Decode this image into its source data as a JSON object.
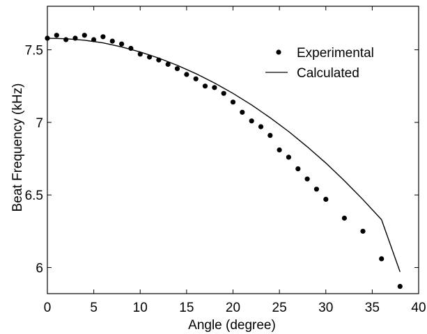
{
  "chart_data": {
    "type": "scatter",
    "xlabel": "Angle (degree)",
    "ylabel": "Beat Frequency (kHz)",
    "xlim": [
      0,
      40
    ],
    "ylim": [
      5.82,
      7.8
    ],
    "xticks": [
      0,
      5,
      10,
      15,
      20,
      25,
      30,
      35,
      40
    ],
    "yticks": [
      6,
      6.5,
      7,
      7.5
    ],
    "xtick_labels": [
      "0",
      "5",
      "10",
      "15",
      "20",
      "25",
      "30",
      "35",
      "40"
    ],
    "ytick_labels": [
      "6",
      "6.5",
      "7",
      "7.5"
    ],
    "grid": false,
    "legend_position": "top-right",
    "series": [
      {
        "name": "Experimental",
        "style": "markers",
        "color": "#000000",
        "x": [
          0,
          1,
          2,
          3,
          4,
          5,
          6,
          7,
          8,
          9,
          10,
          11,
          12,
          13,
          14,
          15,
          16,
          17,
          18,
          19,
          20,
          21,
          22,
          23,
          24,
          25,
          26,
          27,
          28,
          29,
          30,
          32,
          34,
          36,
          38
        ],
        "y": [
          7.58,
          7.6,
          7.57,
          7.58,
          7.6,
          7.57,
          7.59,
          7.56,
          7.54,
          7.51,
          7.47,
          7.45,
          7.43,
          7.4,
          7.37,
          7.33,
          7.3,
          7.25,
          7.24,
          7.2,
          7.14,
          7.07,
          7.01,
          6.97,
          6.91,
          6.81,
          6.76,
          6.68,
          6.61,
          6.54,
          6.47,
          6.34,
          6.25,
          6.06,
          5.87
        ]
      },
      {
        "name": "Calculated",
        "style": "line",
        "color": "#000000",
        "x": [
          0,
          2,
          4,
          6,
          8,
          10,
          12,
          14,
          16,
          18,
          20,
          22,
          24,
          26,
          28,
          30,
          32,
          34,
          36,
          38
        ],
        "y": [
          7.58,
          7.576,
          7.566,
          7.548,
          7.52,
          7.485,
          7.443,
          7.393,
          7.336,
          7.271,
          7.2,
          7.12,
          7.032,
          6.937,
          6.832,
          6.72,
          6.598,
          6.468,
          6.33,
          5.97
        ]
      }
    ]
  }
}
